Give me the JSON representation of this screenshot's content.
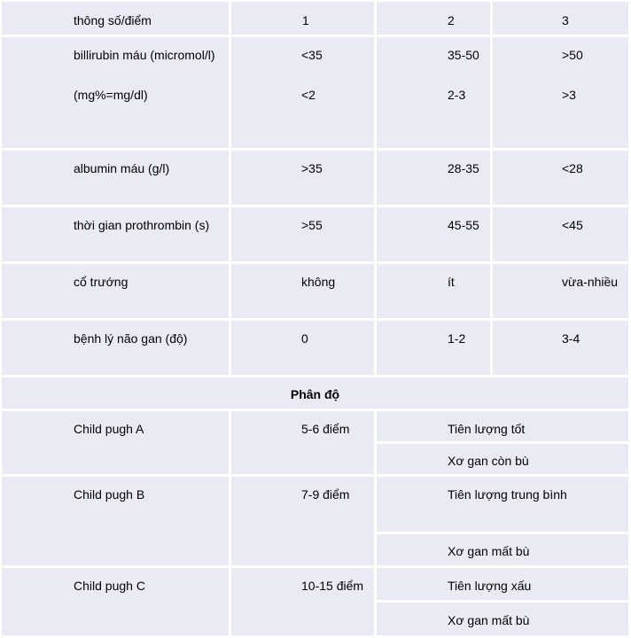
{
  "colors": {
    "cell_bg": "#e8ebf4",
    "border": "#ffffff",
    "text": "#000000"
  },
  "header": {
    "param": "thông số/điểm",
    "p1": "1",
    "p2": "2",
    "p3": "3"
  },
  "rows": {
    "bilirubin": {
      "label1": "billirubin máu (micromol/l)",
      "label2": "(mg%=mg/dl)",
      "v1a": "<35",
      "v1b": "<2",
      "v2a": "35-50",
      "v2b": "2-3",
      "v3a": ">50",
      "v3b": ">3"
    },
    "albumin": {
      "label": "albumin máu (g/l)",
      "v1": ">35",
      "v2": "28-35",
      "v3": "<28"
    },
    "prothrombin": {
      "label": "thời gian prothrombin (s)",
      "v1": ">55",
      "v2": "45-55",
      "v3": "<45"
    },
    "ascites": {
      "label": "cổ trướng",
      "v1": "không",
      "v2": "ít",
      "v3": "vừa-nhiều"
    },
    "encephalopathy": {
      "label": "bệnh lý não gan (độ)",
      "v1": "0",
      "v2": "1-2",
      "v3": "3-4"
    }
  },
  "classification": {
    "title": "Phân độ",
    "a": {
      "label": "Child pugh A",
      "points": "5-6 điểm",
      "prognosis": "Tiên lượng tốt",
      "status": "Xơ gan còn bù"
    },
    "b": {
      "label": "Child pugh B",
      "points": "7-9 điểm",
      "prognosis": "Tiên lượng trung bình",
      "status": "Xơ gan mất bù"
    },
    "c": {
      "label": "Child pugh C",
      "points": "10-15 điểm",
      "prognosis": "Tiên lượng xấu",
      "status": "Xơ gan mất bù"
    }
  }
}
